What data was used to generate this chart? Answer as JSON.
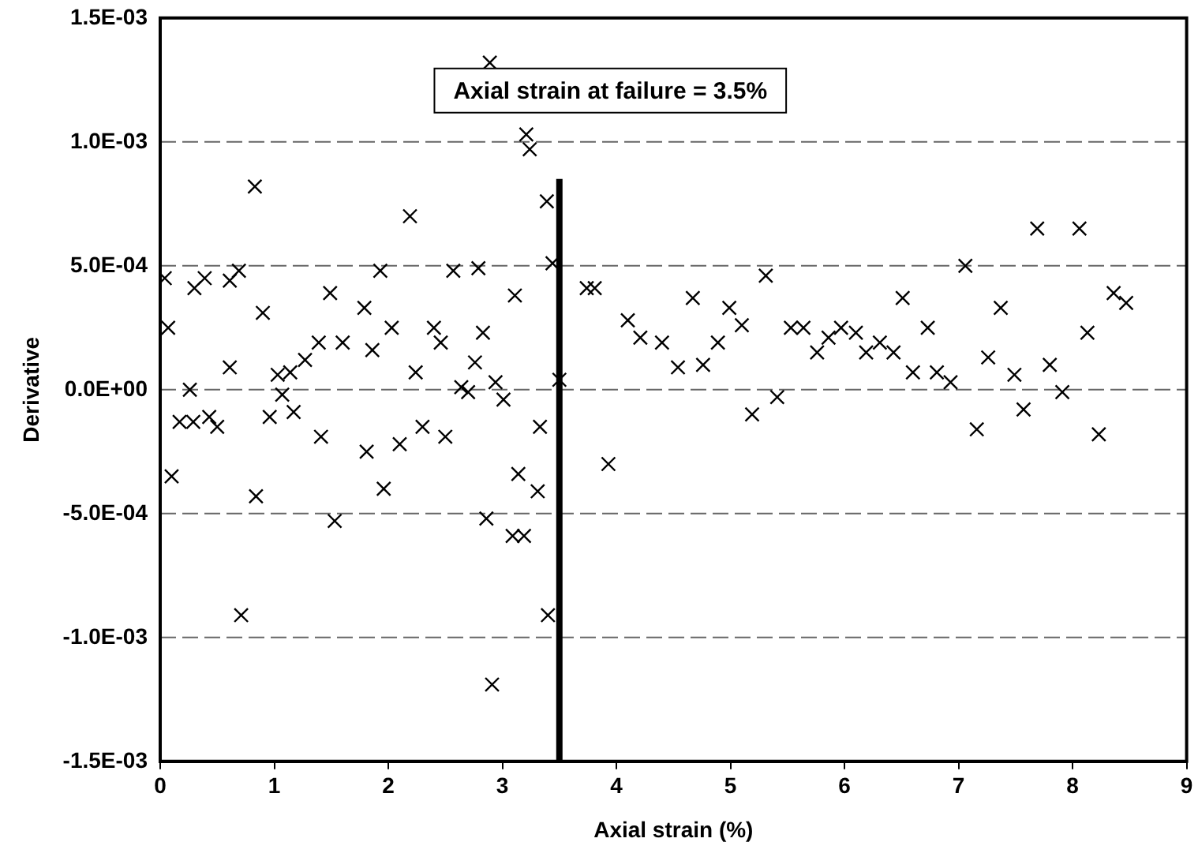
{
  "chart_data": {
    "type": "scatter",
    "xlabel": "Axial strain (%)",
    "ylabel": "Derivative",
    "x": [
      0.04,
      0.07,
      0.1,
      0.17,
      0.26,
      0.29,
      0.3,
      0.39,
      0.43,
      0.5,
      0.61,
      0.61,
      0.69,
      0.71,
      0.83,
      0.84,
      0.9,
      0.96,
      1.03,
      1.07,
      1.14,
      1.17,
      1.27,
      1.39,
      1.41,
      1.49,
      1.53,
      1.6,
      1.79,
      1.81,
      1.86,
      1.93,
      1.96,
      2.03,
      2.1,
      2.19,
      2.24,
      2.3,
      2.4,
      2.46,
      2.5,
      2.57,
      2.64,
      2.7,
      2.76,
      2.79,
      2.83,
      2.86,
      2.89,
      2.91,
      2.94,
      3.01,
      3.09,
      3.11,
      3.14,
      3.19,
      3.21,
      3.24,
      3.31,
      3.33,
      3.39,
      3.4,
      3.44,
      3.5,
      3.74,
      3.81,
      3.93,
      4.1,
      4.21,
      4.4,
      4.54,
      4.67,
      4.76,
      4.89,
      4.99,
      5.1,
      5.19,
      5.31,
      5.41,
      5.53,
      5.64,
      5.76,
      5.86,
      5.97,
      6.1,
      6.19,
      6.31,
      6.43,
      6.51,
      6.6,
      6.73,
      6.81,
      6.93,
      7.06,
      7.16,
      7.26,
      7.37,
      7.49,
      7.57,
      7.69,
      7.8,
      7.91,
      8.06,
      8.13,
      8.23,
      8.36,
      8.47
    ],
    "values": [
      0.00045,
      0.00025,
      -0.00035,
      -0.00013,
      0,
      -0.00013,
      0.00041,
      0.00045,
      -0.00011,
      -0.00015,
      0.00044,
      9e-05,
      0.00048,
      -0.00091,
      0.00082,
      -0.00043,
      0.00031,
      -0.00011,
      6e-05,
      -2e-05,
      7e-05,
      -9e-05,
      0.00012,
      0.00019,
      -0.00019,
      0.00039,
      -0.00053,
      0.00019,
      0.00033,
      -0.00025,
      0.00016,
      0.00048,
      -0.0004,
      0.00025,
      -0.00022,
      0.0007,
      7e-05,
      -0.00015,
      0.00025,
      0.00019,
      -0.00019,
      0.00048,
      1e-05,
      -1e-05,
      0.00011,
      0.00049,
      0.00023,
      -0.00052,
      0.00132,
      -0.00119,
      3e-05,
      -4e-05,
      -0.00059,
      0.00038,
      -0.00034,
      -0.00059,
      0.00103,
      0.00097,
      -0.00041,
      -0.00015,
      0.00076,
      -0.00091,
      0.00051,
      4e-05,
      0.00041,
      0.00041,
      -0.0003,
      0.00028,
      0.00021,
      0.00019,
      9e-05,
      0.00037,
      0.0001,
      0.00019,
      0.00033,
      0.00026,
      -0.0001,
      0.00046,
      -3e-05,
      0.00025,
      0.00025,
      0.00015,
      0.00021,
      0.00025,
      0.00023,
      0.00015,
      0.00019,
      0.00015,
      0.00037,
      7e-05,
      0.00025,
      7e-05,
      3e-05,
      0.0005,
      -0.00016,
      0.00013,
      0.00033,
      6e-05,
      -8e-05,
      0.00065,
      0.0001,
      -1e-05,
      0.00065,
      0.00023,
      -0.00018,
      0.00039,
      0.00035
    ],
    "color": "#000000",
    "marker": "cross",
    "grid": "y",
    "xlim": [
      0,
      9
    ],
    "xticks": [
      0,
      1,
      2,
      3,
      4,
      5,
      6,
      7,
      8,
      9
    ],
    "ylim": [
      -0.0015,
      0.0015
    ],
    "yticks": [
      {
        "value": -0.0015,
        "label": "-1.5E-03"
      },
      {
        "value": -0.001,
        "label": "-1.0E-03"
      },
      {
        "value": -0.0005,
        "label": "-5.0E-04"
      },
      {
        "value": 0,
        "label": "0.0E+00"
      },
      {
        "value": 0.0005,
        "label": "5.0E-04"
      },
      {
        "value": 0.001,
        "label": "1.0E-03"
      },
      {
        "value": 0.0015,
        "label": "1.5E-03"
      }
    ],
    "ref_lines": [
      {
        "axis": "x",
        "value": 3.5,
        "label": "Axial strain at failure = 3.5%",
        "color": "#000000"
      }
    ]
  }
}
